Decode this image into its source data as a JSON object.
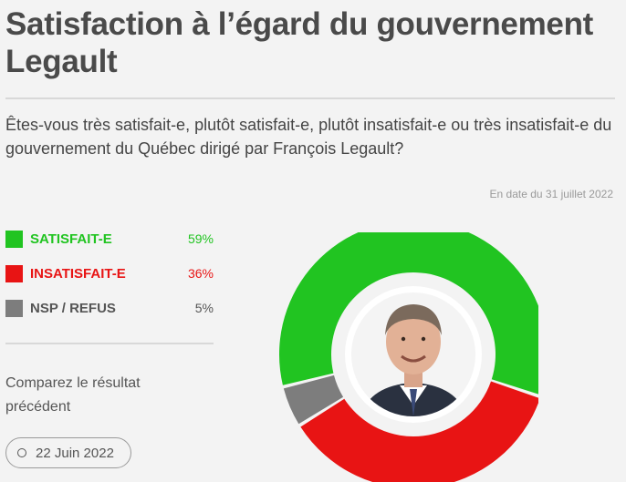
{
  "title": "Satisfaction à l’égard du gouvernement Legault",
  "question": "Êtes-vous très satisfait-e, plutôt satisfait-e, plutôt insatisfait-e ou très insatisfait-e du gouvernement du Québec dirigé par François Legault?",
  "date_note": "En date du 31 juillet 2022",
  "compare": {
    "label": "Comparez le résultat précédent",
    "button_label": "22 Juin 2022"
  },
  "chart_data": {
    "type": "pie",
    "style": "donut",
    "center_image": "portrait-photo",
    "categories": [
      "SATISFAIT-E",
      "INSATISFAIT-E",
      "NSP / REFUS"
    ],
    "values": [
      59,
      36,
      5
    ],
    "value_labels": [
      "59%",
      "36%",
      "5%"
    ],
    "colors": [
      "#21c421",
      "#e81414",
      "#7d7d7d"
    ],
    "legend_position": "left"
  }
}
